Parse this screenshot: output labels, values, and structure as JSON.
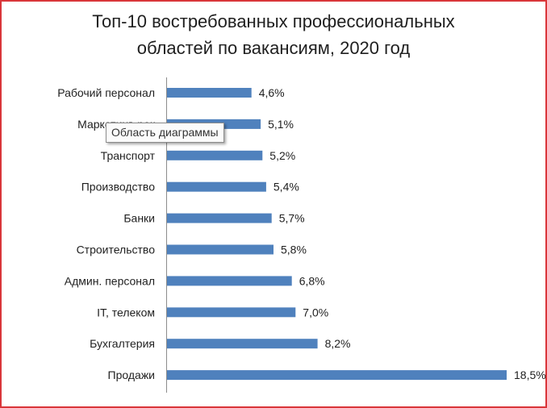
{
  "chart_data": {
    "type": "bar",
    "orientation": "horizontal",
    "title_line1": "Топ-10 востребованных профессиональных",
    "title_line2": "областей по вакансиям, 2020 год",
    "categories": [
      "Рабочий персонал",
      "Маркетинг, реклама, PR",
      "Транспорт",
      "Производство",
      "Банки",
      "Строительство",
      "Админ. персонал",
      "IT, телеком",
      "Бухгалтерия",
      "Продажи"
    ],
    "category_labels_visible": [
      "Рабочий персонал",
      "Маркетинг, рек",
      "Транспорт",
      "Производство",
      "Банки",
      "Строительство",
      "Админ. персонал",
      "IT, телеком",
      "Бухгалтерия",
      "Продажи"
    ],
    "values": [
      4.6,
      5.1,
      5.2,
      5.4,
      5.7,
      5.8,
      6.8,
      7.0,
      8.2,
      18.5
    ],
    "data_labels": [
      "4,6%",
      "5,1%",
      "5,2%",
      "5,4%",
      "5,7%",
      "5,8%",
      "6,8%",
      "7,0%",
      "8,2%",
      "18,5%"
    ],
    "unit": "%",
    "xlim": [
      0,
      18.5
    ],
    "bar_color": "#4f81bd",
    "grid": false,
    "legend": "none"
  },
  "tooltip": {
    "text": "Область диаграммы"
  },
  "colors": {
    "border": "#d9363a",
    "axis": "#8c8c8c",
    "text": "#1f1f1f"
  }
}
